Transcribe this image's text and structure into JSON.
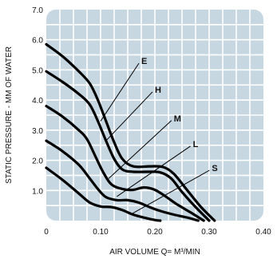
{
  "chart_data": {
    "type": "line",
    "xlabel": "AIR VOLUME Q= M³/MIN",
    "ylabel": "STATIC PRESSURE - MM OF WATER",
    "xlim": [
      0,
      0.4
    ],
    "ylim": [
      0,
      7.0
    ],
    "x_ticks": [
      "0",
      "0.10",
      "0.20",
      "0.30",
      "0.40"
    ],
    "y_ticks": [
      "1.0",
      "2.0",
      "3.0",
      "4.0",
      "5.0",
      "6.0",
      "7.0"
    ],
    "grid": true,
    "background_color": "#c7d7e2",
    "grid_color": "#ffffff",
    "line_color": "#000000",
    "series": [
      {
        "name": "E",
        "points": [
          [
            0,
            5.85
          ],
          [
            0.03,
            5.45
          ],
          [
            0.06,
            4.95
          ],
          [
            0.08,
            4.55
          ],
          [
            0.095,
            4.0
          ],
          [
            0.11,
            3.3
          ],
          [
            0.125,
            2.6
          ],
          [
            0.14,
            2.05
          ],
          [
            0.16,
            1.8
          ],
          [
            0.19,
            1.8
          ],
          [
            0.215,
            1.78
          ],
          [
            0.235,
            1.55
          ],
          [
            0.26,
            1.0
          ],
          [
            0.285,
            0.45
          ],
          [
            0.31,
            0.0
          ]
        ],
        "label_point": [
          0.175,
          5.3
        ],
        "line_start": [
          0.1,
          3.3
        ]
      },
      {
        "name": "H",
        "points": [
          [
            0,
            4.95
          ],
          [
            0.03,
            4.6
          ],
          [
            0.06,
            4.2
          ],
          [
            0.08,
            3.85
          ],
          [
            0.095,
            3.3
          ],
          [
            0.11,
            2.65
          ],
          [
            0.125,
            2.05
          ],
          [
            0.14,
            1.7
          ],
          [
            0.16,
            1.62
          ],
          [
            0.19,
            1.62
          ],
          [
            0.21,
            1.6
          ],
          [
            0.23,
            1.4
          ],
          [
            0.25,
            0.95
          ],
          [
            0.275,
            0.45
          ],
          [
            0.3,
            0.0
          ]
        ],
        "label_point": [
          0.2,
          4.35
        ],
        "line_start": [
          0.11,
          2.65
        ]
      },
      {
        "name": "M",
        "points": [
          [
            0,
            3.8
          ],
          [
            0.03,
            3.45
          ],
          [
            0.06,
            3.0
          ],
          [
            0.075,
            2.7
          ],
          [
            0.09,
            2.15
          ],
          [
            0.105,
            1.6
          ],
          [
            0.12,
            1.2
          ],
          [
            0.14,
            1.05
          ],
          [
            0.16,
            1.02
          ],
          [
            0.18,
            1.1
          ],
          [
            0.2,
            1.02
          ],
          [
            0.22,
            0.8
          ],
          [
            0.24,
            0.55
          ],
          [
            0.265,
            0.28
          ],
          [
            0.29,
            0.0
          ]
        ],
        "label_point": [
          0.235,
          3.4
        ],
        "line_start": [
          0.115,
          1.4
        ]
      },
      {
        "name": "L",
        "points": [
          [
            0,
            2.65
          ],
          [
            0.03,
            2.3
          ],
          [
            0.06,
            1.85
          ],
          [
            0.08,
            1.4
          ],
          [
            0.095,
            1.05
          ],
          [
            0.11,
            0.78
          ],
          [
            0.13,
            0.68
          ],
          [
            0.15,
            0.68
          ],
          [
            0.17,
            0.6
          ],
          [
            0.19,
            0.45
          ],
          [
            0.21,
            0.32
          ],
          [
            0.235,
            0.2
          ],
          [
            0.26,
            0.1
          ],
          [
            0.28,
            0.0
          ]
        ],
        "label_point": [
          0.27,
          2.55
        ],
        "line_start": [
          0.13,
          0.8
        ]
      },
      {
        "name": "S",
        "points": [
          [
            0,
            1.75
          ],
          [
            0.03,
            1.35
          ],
          [
            0.06,
            0.9
          ],
          [
            0.08,
            0.6
          ],
          [
            0.1,
            0.47
          ],
          [
            0.12,
            0.45
          ],
          [
            0.14,
            0.35
          ],
          [
            0.16,
            0.2
          ],
          [
            0.18,
            0.1
          ],
          [
            0.2,
            0.02
          ],
          [
            0.21,
            0.0
          ]
        ],
        "label_point": [
          0.305,
          1.75
        ],
        "line_start": [
          0.155,
          0.2
        ]
      }
    ]
  }
}
